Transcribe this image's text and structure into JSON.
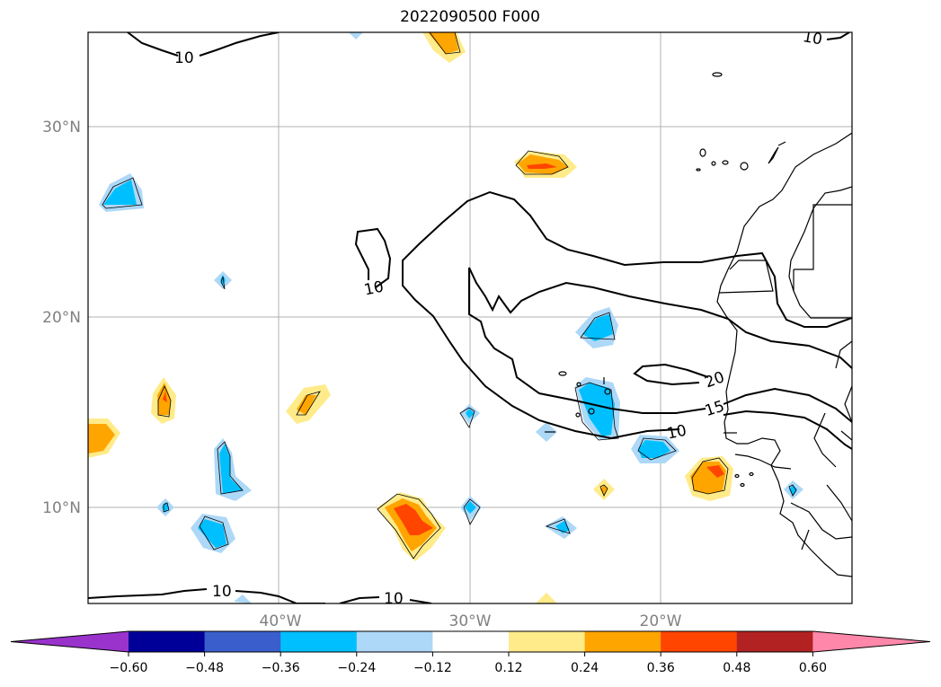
{
  "title": "2022090500 F000",
  "lat_labels": [
    "30°N",
    "20°N",
    "10°N"
  ],
  "lon_labels": [
    "40°W",
    "30°W",
    "20°W"
  ],
  "contour_labels": [
    "10",
    "10",
    "10",
    "10",
    "10",
    "10",
    "15",
    "20"
  ],
  "colorbar": {
    "ticks": [
      "−0.60",
      "−0.48",
      "−0.36",
      "−0.24",
      "−0.12",
      "0.12",
      "0.24",
      "0.36",
      "0.48",
      "0.60"
    ],
    "colors": [
      "#9933cc",
      "#000099",
      "#3a5fcd",
      "#00bfff",
      "#add8f7",
      "#ffffff",
      "#ffeb8a",
      "#ffa500",
      "#ff4500",
      "#b22222",
      "#ff88aa"
    ]
  },
  "map_extent": {
    "lon": [
      -50,
      -10
    ],
    "lat": [
      5,
      35
    ]
  }
}
